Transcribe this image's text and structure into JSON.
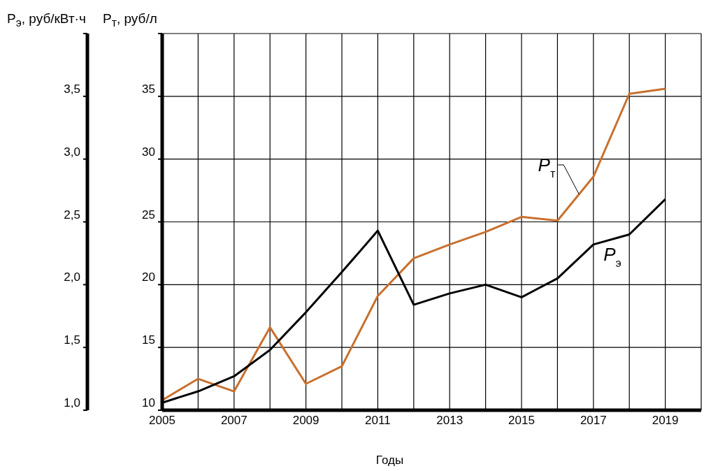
{
  "chart_data": {
    "type": "line",
    "xlabel": "Годы",
    "ylabel": "P$_{т}$, руб/л",
    "y2label": "P$_{э}$, руб/кВт·ч",
    "x": [
      2005,
      2006,
      2007,
      2008,
      2009,
      2010,
      2011,
      2012,
      2013,
      2014,
      2015,
      2016,
      2017,
      2018,
      2019
    ],
    "xlim": [
      2005,
      2020
    ],
    "xticks": [
      2005,
      {
        "value": 2006,
        "label": null
      },
      2007,
      {
        "value": 2008,
        "label": null
      },
      2009,
      {
        "value": 2010,
        "label": null
      },
      2011,
      {
        "value": 2012,
        "label": null
      },
      2013,
      {
        "value": 2014,
        "label": null
      },
      2015,
      {
        "value": 2016,
        "label": null
      },
      2017,
      {
        "value": 2018,
        "label": null
      },
      2019
    ],
    "ylim": [
      10,
      40
    ],
    "yticks": [
      10,
      15,
      20,
      25,
      30,
      35,
      {
        "value": 40,
        "label": null
      }
    ],
    "y2lim": [
      1.0,
      4.0
    ],
    "y2ticks": [
      {
        "value": 1.0,
        "label": "1,0"
      },
      {
        "value": 1.5,
        "label": "1,5"
      },
      {
        "value": 2.0,
        "label": "2,0"
      },
      {
        "value": 2.5,
        "label": "2,5"
      },
      {
        "value": 3.0,
        "label": "3,0"
      },
      {
        "value": 3.5,
        "label": "3,5"
      },
      {
        "value": 4.0,
        "label": null
      }
    ],
    "series": [
      {
        "name": "P$_{т}$",
        "color": "#c8702e",
        "values": [
          10.8,
          12.5,
          11.5,
          16.6,
          12.1,
          13.5,
          19.1,
          22.1,
          23.2,
          24.2,
          25.4,
          25.1,
          28.6,
          35.2,
          35.6
        ]
      },
      {
        "name": "P$_{э}$",
        "color": "#000000",
        "axis": "y2",
        "values": [
          1.06,
          1.15,
          1.27,
          1.48,
          1.78,
          2.1,
          2.43,
          1.84,
          1.93,
          2.0,
          1.9,
          2.05,
          2.32,
          2.4,
          2.68
        ]
      }
    ],
    "grid": true,
    "legend": false,
    "marker": "none",
    "line_style": "solid"
  }
}
